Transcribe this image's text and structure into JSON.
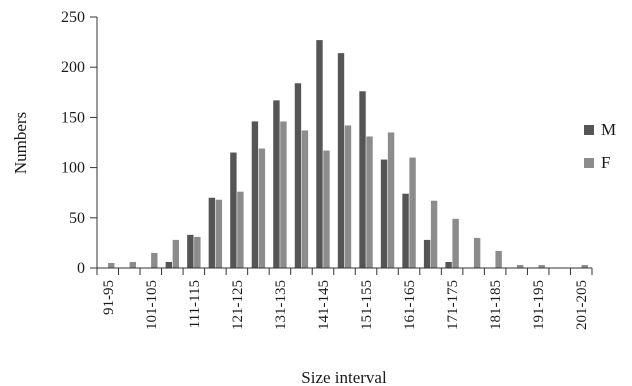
{
  "chart_data": {
    "type": "bar",
    "xlabel": "Size interval",
    "ylabel": "Numbers",
    "ylim": [
      0,
      250
    ],
    "yticks": [
      0,
      50,
      100,
      150,
      200,
      250
    ],
    "grid": false,
    "legend_position": "right",
    "x_tick_labels": [
      "91-95",
      "101-105",
      "111-115",
      "121-125",
      "131-135",
      "141-145",
      "151-155",
      "161-165",
      "171-175",
      "181-185",
      "191-195",
      "201-205"
    ],
    "categories": [
      "91-95",
      "96-100",
      "101-105",
      "106-110",
      "111-115",
      "116-120",
      "121-125",
      "126-130",
      "131-135",
      "136-140",
      "141-145",
      "146-150",
      "151-155",
      "156-160",
      "161-165",
      "166-170",
      "171-175",
      "176-180",
      "181-185",
      "186-190",
      "191-195",
      "196-200",
      "201-205"
    ],
    "series": [
      {
        "name": "M",
        "color": "#555555",
        "values": [
          0,
          0,
          0,
          6,
          33,
          70,
          115,
          146,
          167,
          184,
          227,
          214,
          176,
          108,
          74,
          28,
          6,
          0,
          0,
          0,
          0,
          0,
          0
        ]
      },
      {
        "name": "F",
        "color": "#8c8c8c",
        "values": [
          5,
          6,
          15,
          28,
          31,
          68,
          76,
          119,
          146,
          137,
          117,
          142,
          131,
          135,
          110,
          67,
          49,
          30,
          17,
          3,
          3,
          0,
          3
        ]
      }
    ]
  }
}
